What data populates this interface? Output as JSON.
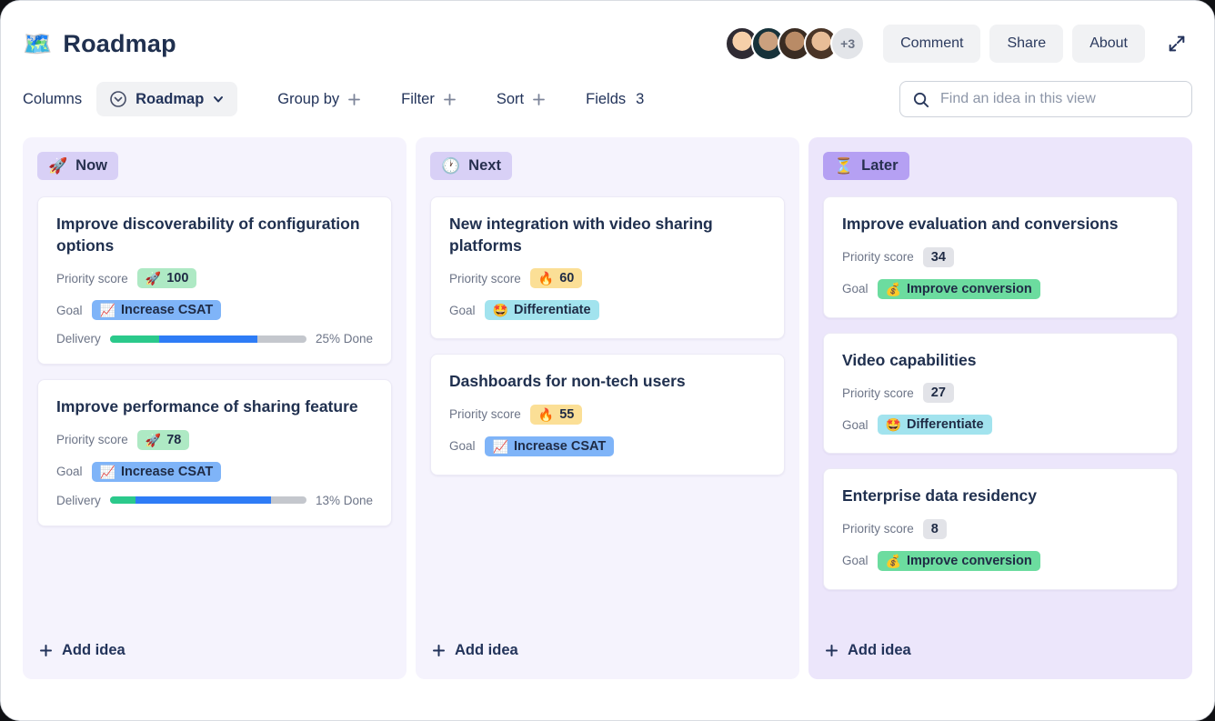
{
  "colors": {
    "text_navy": "#22335a",
    "column_bg": "#f5f3fd",
    "later_column_bg": "#ece6fb",
    "pill_lavender": "#d8d0f6",
    "pill_purple": "#b5a0f3",
    "badge_green": "#aee9c4",
    "badge_yellow": "#fbdf96",
    "badge_gray": "#e2e3e8",
    "goal_blue": "#7fb4f8",
    "goal_cyan": "#a2e3ee",
    "goal_mint": "#6cdc9f",
    "progress_done": "#2bc98b",
    "progress_active": "#2e7cf6",
    "progress_track": "#c4c7cd"
  },
  "header": {
    "title_emoji": "🗺️",
    "title": "Roadmap",
    "avatars": [
      "avatar-user-1",
      "avatar-user-2",
      "avatar-user-3",
      "avatar-user-4"
    ],
    "avatar_overflow": "+3",
    "buttons": {
      "comment": "Comment",
      "share": "Share",
      "about": "About"
    }
  },
  "toolbar": {
    "columns_label": "Columns",
    "view_name": "Roadmap",
    "group_by_label": "Group by",
    "filter_label": "Filter",
    "sort_label": "Sort",
    "fields_label": "Fields",
    "fields_count": "3",
    "search_placeholder": "Find an idea in this view"
  },
  "board": {
    "labels": {
      "priority": "Priority score",
      "goal": "Goal",
      "delivery": "Delivery"
    },
    "add_idea_label": "Add idea",
    "columns": [
      {
        "label": "Now",
        "emoji": "🚀",
        "cards": [
          {
            "title": "Improve discoverability of configuration options",
            "priority": {
              "emoji": "🚀",
              "value": "100"
            },
            "goal": {
              "emoji": "📈",
              "label": "Increase CSAT"
            },
            "delivery": {
              "done_label": "25% Done",
              "done_pct": 25,
              "in_progress_pct": 50
            }
          },
          {
            "title": "Improve performance of sharing feature",
            "priority": {
              "emoji": "🚀",
              "value": "78"
            },
            "goal": {
              "emoji": "📈",
              "label": "Increase CSAT"
            },
            "delivery": {
              "done_label": "13% Done",
              "done_pct": 13,
              "in_progress_pct": 69
            }
          }
        ]
      },
      {
        "label": "Next",
        "emoji": "🕐",
        "cards": [
          {
            "title": "New integration with video sharing platforms",
            "priority": {
              "emoji": "🔥",
              "value": "60"
            },
            "goal": {
              "emoji": "🤩",
              "label": "Differentiate"
            }
          },
          {
            "title": "Dashboards for non-tech users",
            "priority": {
              "emoji": "🔥",
              "value": "55"
            },
            "goal": {
              "emoji": "📈",
              "label": "Increase CSAT"
            }
          }
        ]
      },
      {
        "label": "Later",
        "emoji": "⏳",
        "cards": [
          {
            "title": "Improve evaluation and conversions",
            "priority": {
              "value": "34"
            },
            "goal": {
              "emoji": "💰",
              "label": "Improve conversion"
            }
          },
          {
            "title": "Video capabilities",
            "priority": {
              "value": "27"
            },
            "goal": {
              "emoji": "🤩",
              "label": "Differentiate"
            }
          },
          {
            "title": "Enterprise data residency",
            "priority": {
              "value": "8"
            },
            "goal": {
              "emoji": "💰",
              "label": "Improve conversion"
            }
          }
        ]
      }
    ]
  }
}
